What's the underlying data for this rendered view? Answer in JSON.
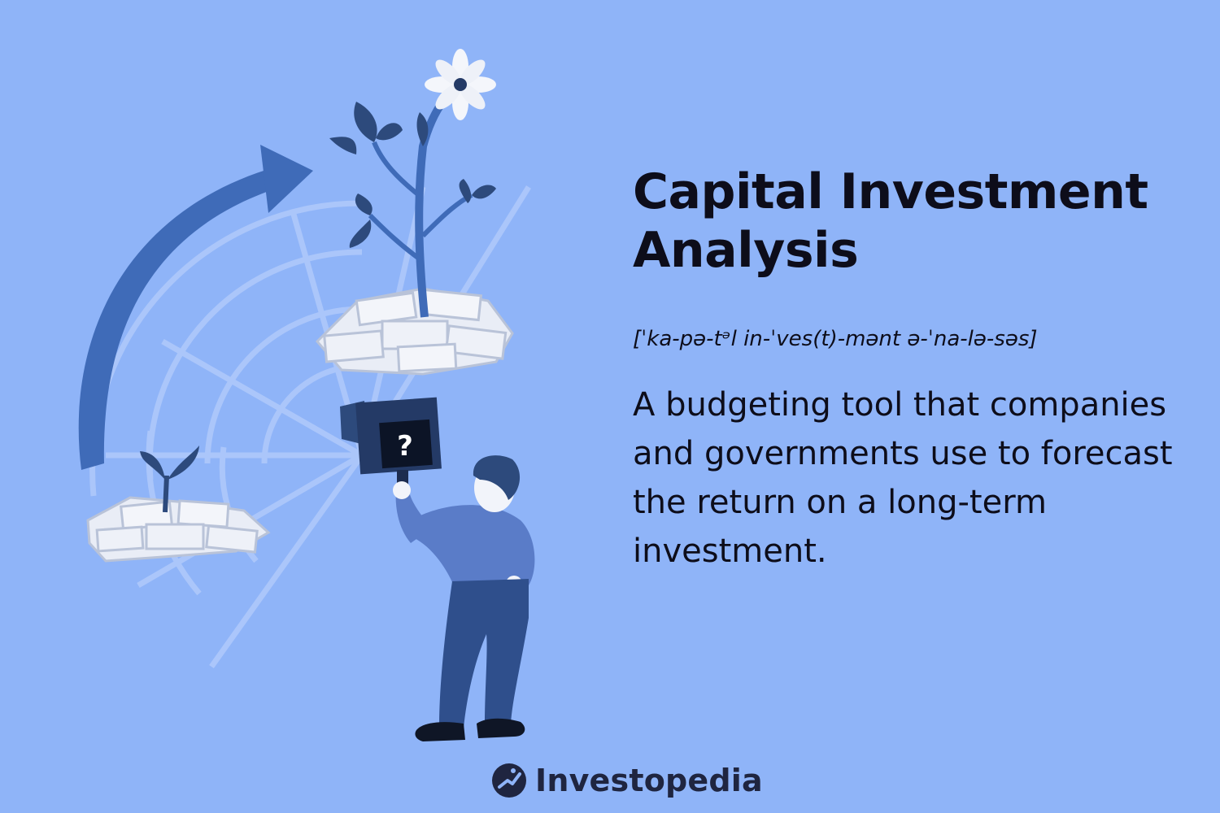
{
  "title": {
    "line1": "Capital Investment",
    "line2": "Analysis"
  },
  "pronunciation": "[ˈka-pə-tᵊl in-ˈves(t)-mənt ə-ˈna-lə-səs]",
  "definition": "A budgeting tool that companies and governments use to forecast the return on a long-term investment.",
  "brand": {
    "name": "Investopedia",
    "icon": "investopedia-logo-icon"
  },
  "illustration": {
    "camera_screen_glyph": "?",
    "colors": {
      "background": "#8fb4f8",
      "arrow": "#3f6bb8",
      "plant_dark": "#2d4a7c",
      "money": "#e9edf6",
      "person_shirt": "#5a7cc8",
      "person_pants": "#2f4f8c",
      "camera": "#243a66"
    }
  }
}
